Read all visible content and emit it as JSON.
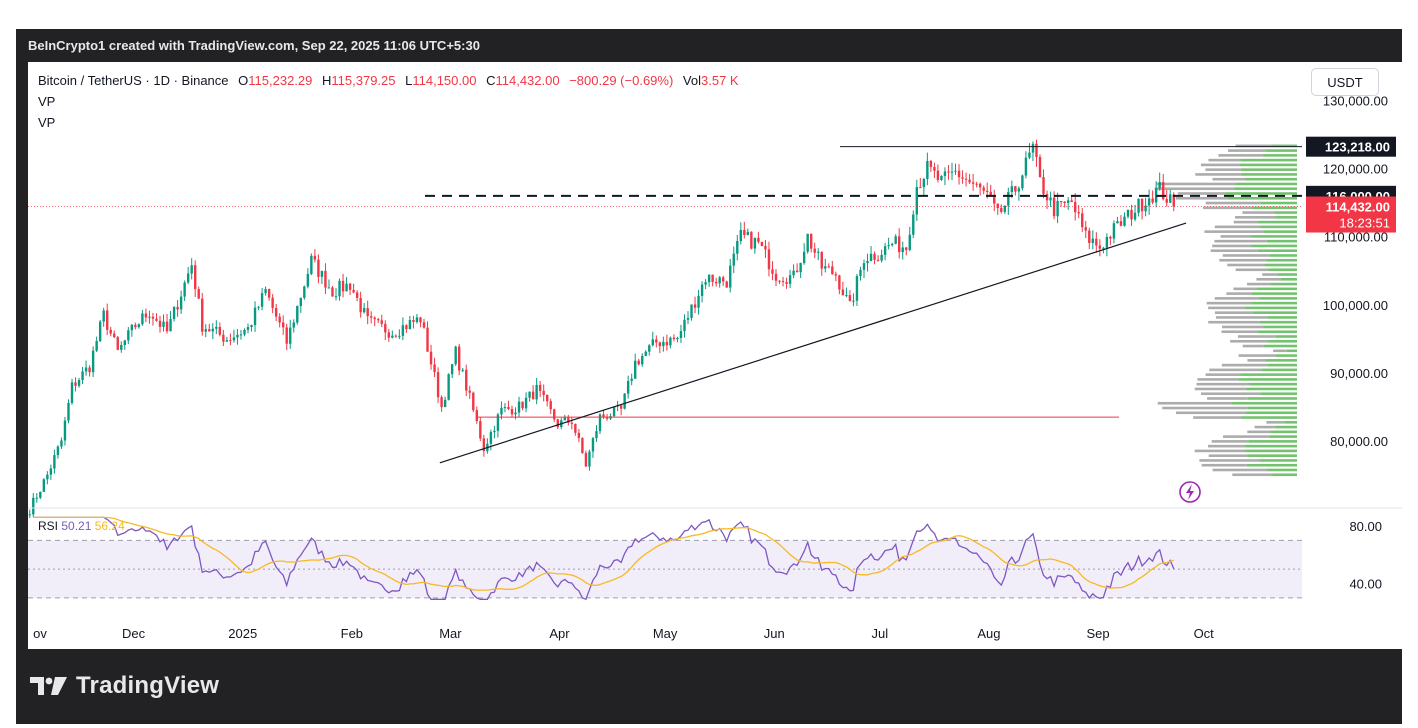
{
  "header": {
    "attribution": "BeInCrypto1 created with TradingView.com, Sep 22, 2025 11:06 UTC+5:30"
  },
  "legend": {
    "symbol": "Bitcoin / TetherUS · 1D · Binance",
    "o_label": "O",
    "o_value": "115,232.29",
    "h_label": "H",
    "h_value": "115,379.25",
    "l_label": "L",
    "l_value": "114,150.00",
    "c_label": "C",
    "c_value": "114,432.00",
    "change": "−800.29 (−0.69%)",
    "vol_label": "Vol",
    "vol_value": "3.57 K",
    "indicators": [
      "VP",
      "VP"
    ]
  },
  "currency_button": "USDT",
  "rsi_legend": {
    "name": "RSI",
    "value": "50.21",
    "ma_value": "56.24"
  },
  "footer": {
    "brand": "TradingView",
    "logo_icon": "tradingview-logo-icon"
  },
  "colors": {
    "up": "#089981",
    "down": "#f23645",
    "rsi_line": "#7e57c2",
    "rsi_ma": "#f7b924",
    "vp_up": "#6dbf67",
    "vp_down": "#9e9e9e",
    "price_label_bg": "#f23645",
    "level_label_bg": "#131722"
  },
  "chart_data": [
    {
      "type": "candlestick",
      "title": "",
      "xlabel": "",
      "ylabel": "",
      "x_tick_labels": [
        "ov",
        "Dec",
        "2025",
        "Feb",
        "Mar",
        "Apr",
        "May",
        "Jun",
        "Jul",
        "Aug",
        "Sep",
        "Oct"
      ],
      "y_tick_labels": [
        "130,000.00",
        "120,000.00",
        "110,000.00",
        "100,000.00",
        "90,000.00",
        "80,000.00"
      ],
      "ylim": [
        73000,
        131000
      ],
      "price_series_approx": [
        [
          "2024-11-01",
          70000
        ],
        [
          "2024-11-06",
          75000
        ],
        [
          "2024-11-10",
          80000
        ],
        [
          "2024-11-13",
          88000
        ],
        [
          "2024-11-18",
          91000
        ],
        [
          "2024-11-22",
          98500
        ],
        [
          "2024-11-26",
          93000
        ],
        [
          "2024-12-01",
          97000
        ],
        [
          "2024-12-05",
          99000
        ],
        [
          "2024-12-10",
          96000
        ],
        [
          "2024-12-17",
          106000
        ],
        [
          "2024-12-20",
          97000
        ],
        [
          "2024-12-27",
          95000
        ],
        [
          "2025-01-02",
          96500
        ],
        [
          "2025-01-07",
          102000
        ],
        [
          "2025-01-13",
          94500
        ],
        [
          "2025-01-20",
          106500
        ],
        [
          "2025-01-26",
          102000
        ],
        [
          "2025-01-31",
          103000
        ],
        [
          "2025-02-05",
          97500
        ],
        [
          "2025-02-12",
          96000
        ],
        [
          "2025-02-20",
          98000
        ],
        [
          "2025-02-26",
          85000
        ],
        [
          "2025-03-02",
          93000
        ],
        [
          "2025-03-05",
          88000
        ],
        [
          "2025-03-10",
          79000
        ],
        [
          "2025-03-15",
          84500
        ],
        [
          "2025-03-20",
          85000
        ],
        [
          "2025-03-25",
          87500
        ],
        [
          "2025-03-31",
          82500
        ],
        [
          "2025-04-04",
          83000
        ],
        [
          "2025-04-08",
          76500
        ],
        [
          "2025-04-12",
          83500
        ],
        [
          "2025-04-18",
          84500
        ],
        [
          "2025-04-22",
          91500
        ],
        [
          "2025-04-28",
          94500
        ],
        [
          "2025-05-04",
          95000
        ],
        [
          "2025-05-08",
          99500
        ],
        [
          "2025-05-12",
          104000
        ],
        [
          "2025-05-18",
          103500
        ],
        [
          "2025-05-22",
          110000
        ],
        [
          "2025-05-27",
          109000
        ],
        [
          "2025-06-01",
          104500
        ],
        [
          "2025-06-06",
          104000
        ],
        [
          "2025-06-10",
          110000
        ],
        [
          "2025-06-14",
          105500
        ],
        [
          "2025-06-18",
          104500
        ],
        [
          "2025-06-22",
          99500
        ],
        [
          "2025-06-26",
          107000
        ],
        [
          "2025-06-30",
          107500
        ],
        [
          "2025-07-04",
          109000
        ],
        [
          "2025-07-08",
          108500
        ],
        [
          "2025-07-11",
          117500
        ],
        [
          "2025-07-14",
          120000
        ],
        [
          "2025-07-18",
          118000
        ],
        [
          "2025-07-22",
          119500
        ],
        [
          "2025-07-26",
          118000
        ],
        [
          "2025-07-31",
          116000
        ],
        [
          "2025-08-03",
          113000
        ],
        [
          "2025-08-08",
          117000
        ],
        [
          "2025-08-13",
          123000
        ],
        [
          "2025-08-15",
          118000
        ],
        [
          "2025-08-19",
          114000
        ],
        [
          "2025-08-24",
          115000
        ],
        [
          "2025-08-28",
          110000
        ],
        [
          "2025-09-01",
          108500
        ],
        [
          "2025-09-05",
          111000
        ],
        [
          "2025-09-10",
          113500
        ],
        [
          "2025-09-14",
          115500
        ],
        [
          "2025-09-18",
          117000
        ],
        [
          "2025-09-22",
          114432
        ]
      ],
      "annotations": [
        {
          "kind": "horizontal_line",
          "label": "123,218.00",
          "value": 123218,
          "style": "solid",
          "color": "#131722"
        },
        {
          "kind": "horizontal_line",
          "label": "116,000.00",
          "value": 116000,
          "style": "dashed",
          "color": "#131722"
        },
        {
          "kind": "horizontal_line",
          "value": 83500,
          "style": "solid",
          "color": "#f23645"
        },
        {
          "kind": "trendline",
          "from": [
            "2025-02-26",
            76800
          ],
          "to": [
            "2025-09-26",
            112000
          ],
          "color": "#131722"
        },
        {
          "kind": "last_price",
          "label": "114,432.00",
          "countdown": "18:23:51",
          "value": 114432
        }
      ],
      "volume_profile": {
        "present": true,
        "price_range": [
          75000,
          123500
        ]
      }
    },
    {
      "type": "line",
      "title": "",
      "series_names": [
        "RSI",
        "RSI-based MA"
      ],
      "y_tick_labels": [
        "80.00",
        "40.00"
      ],
      "ylim": [
        27,
        88
      ],
      "bands": {
        "upper": 70,
        "middle": 50,
        "lower": 30
      },
      "last_values": {
        "rsi": 50.21,
        "ma": 56.24
      }
    }
  ]
}
